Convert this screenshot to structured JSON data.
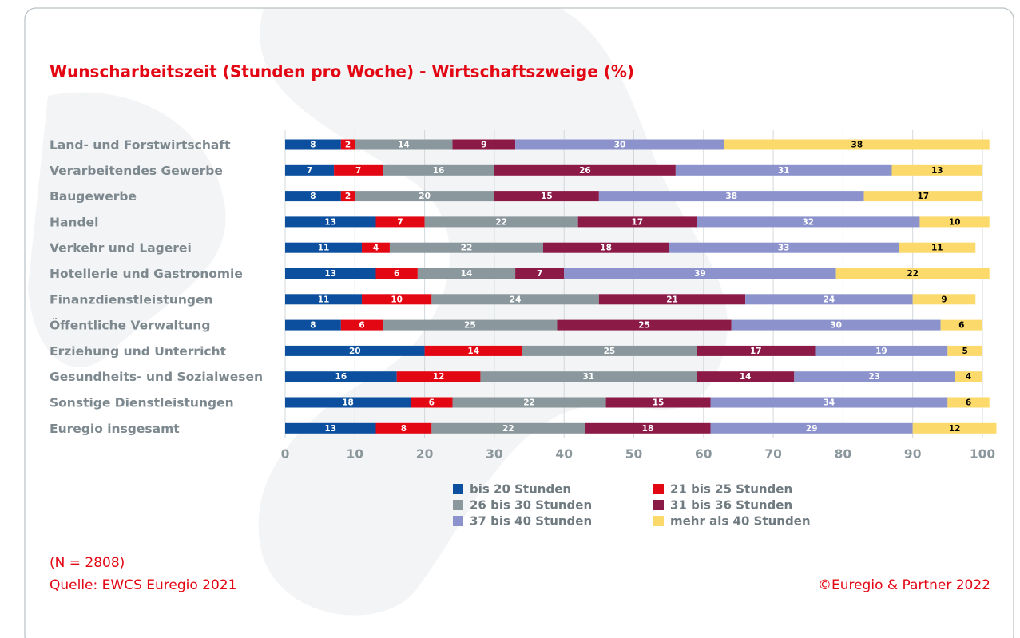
{
  "chart_data": {
    "type": "bar",
    "orientation": "horizontal",
    "stacked": true,
    "title": "Wunscharbeitszeit (Stunden pro Woche) - Wirtschaftszweige (%)",
    "categories": [
      "Land- und Forstwirtschaft",
      "Verarbeitendes Gewerbe",
      "Baugewerbe",
      "Handel",
      "Verkehr und Lagerei",
      "Hotellerie und Gastronomie",
      "Finanzdienstleistungen",
      "Öffentliche Verwaltung",
      "Erziehung und Unterricht",
      "Gesundheits- und Sozialwesen",
      "Sonstige Dienstleistungen",
      "Euregio insgesamt"
    ],
    "series": [
      {
        "name": "bis 20 Stunden",
        "color": "#0b4f9e",
        "label_color": "#ffffff",
        "values": [
          8,
          7,
          8,
          13,
          11,
          13,
          11,
          8,
          20,
          16,
          18,
          13
        ]
      },
      {
        "name": "21 bis 25 Stunden",
        "color": "#e30613",
        "label_color": "#ffffff",
        "values": [
          2,
          7,
          2,
          7,
          4,
          6,
          10,
          6,
          14,
          12,
          6,
          8
        ]
      },
      {
        "name": "26 bis 30 Stunden",
        "color": "#8a979c",
        "label_color": "#ffffff",
        "values": [
          14,
          16,
          20,
          22,
          22,
          14,
          24,
          25,
          25,
          31,
          22,
          22
        ]
      },
      {
        "name": "31 bis 36 Stunden",
        "color": "#8b1a47",
        "label_color": "#ffffff",
        "values": [
          9,
          26,
          15,
          17,
          18,
          7,
          21,
          25,
          17,
          14,
          15,
          18
        ]
      },
      {
        "name": "37 bis 40 Stunden",
        "color": "#8c93cc",
        "label_color": "#ffffff",
        "values": [
          30,
          31,
          38,
          32,
          33,
          39,
          24,
          30,
          19,
          23,
          34,
          29
        ]
      },
      {
        "name": "mehr als 40 Stunden",
        "color": "#fcd96b",
        "label_color": "#000000",
        "values": [
          38,
          13,
          17,
          10,
          11,
          22,
          9,
          6,
          5,
          4,
          6,
          12
        ]
      }
    ],
    "xlim": [
      0,
      100
    ],
    "xticks": [
      0,
      10,
      20,
      30,
      40,
      50,
      60,
      70,
      80,
      90,
      100
    ],
    "grid": true,
    "sample_note": "(N = 2808)",
    "source": "Quelle: EWCS Euregio 2021",
    "copyright": "©Euregio & Partner 2022"
  }
}
